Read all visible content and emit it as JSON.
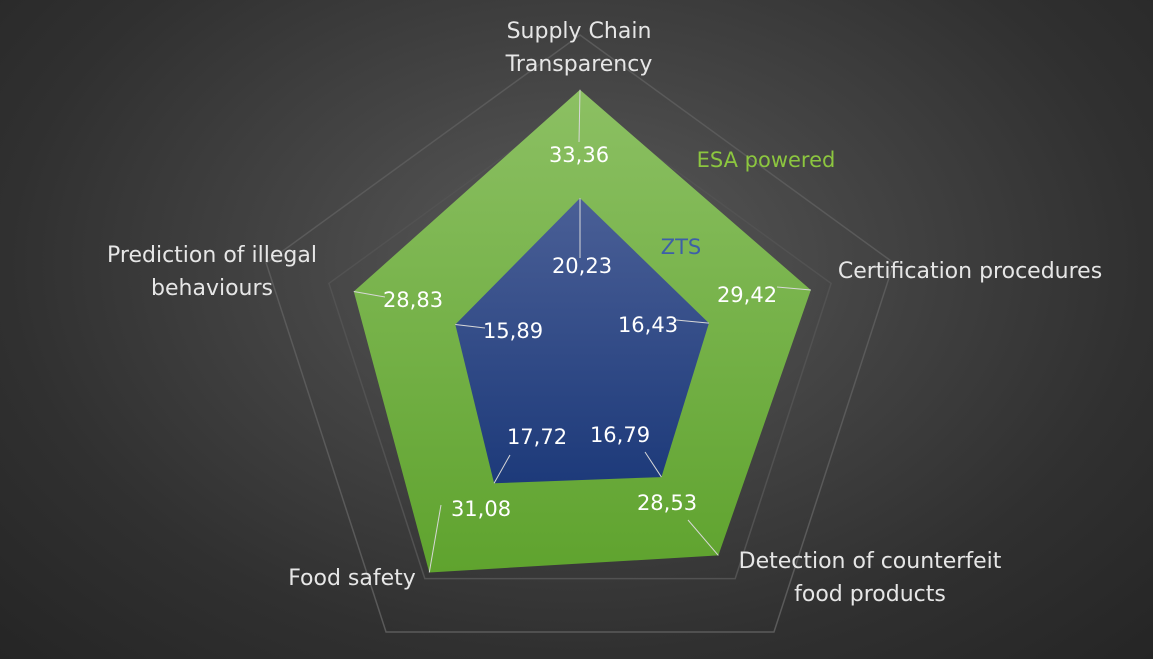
{
  "chart_data": {
    "type": "radar",
    "categories": [
      "Supply Chain Transparency",
      "Certification procedures",
      "Detection of counterfeit food products",
      "Food safety",
      "Prediction of illegal behaviours"
    ],
    "category_lines": [
      [
        "Supply Chain",
        "Transparency"
      ],
      [
        "Certification procedures"
      ],
      [
        "Detection of counterfeit",
        "food products"
      ],
      [
        "Food safety"
      ],
      [
        "Prediction of illegal",
        "behaviours"
      ]
    ],
    "series": [
      {
        "name": "ESA powered",
        "values": [
          33.36,
          29.42,
          28.53,
          31.08,
          28.83
        ],
        "labels": [
          "33,36",
          "29,42",
          "28,53",
          "31,08",
          "28,83"
        ],
        "color": "#6aad3a"
      },
      {
        "name": "ZTS",
        "values": [
          20.23,
          16.43,
          16.79,
          17.72,
          15.89
        ],
        "labels": [
          "20,23",
          "16,43",
          "16,79",
          "17,72",
          "15,89"
        ],
        "color": "#2a4a8c"
      }
    ],
    "rmax": 40,
    "grid": true
  }
}
